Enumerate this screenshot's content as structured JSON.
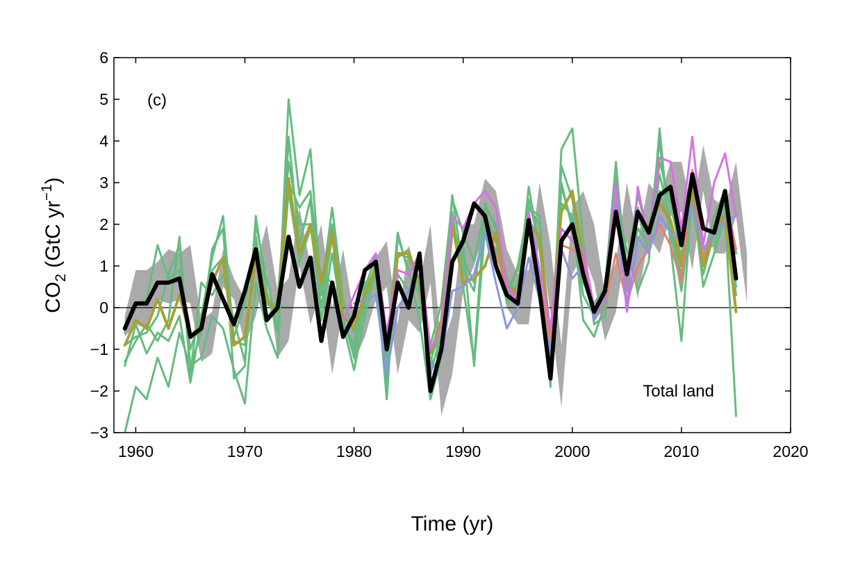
{
  "chart_data": {
    "type": "line",
    "panel_label": "(c)",
    "annotation": "Total land",
    "xlabel": "Time (yr)",
    "ylabel": {
      "base": "CO",
      "sub": "2",
      "mid": " (GtC yr",
      "sup": "−1",
      "end": ")"
    },
    "xlim": [
      1958,
      2020
    ],
    "ylim": [
      -3,
      6
    ],
    "xticks": [
      1960,
      1970,
      1980,
      1990,
      2000,
      2010,
      2020
    ],
    "yticks": [
      -3,
      -2,
      -1,
      0,
      1,
      2,
      3,
      4,
      5,
      6
    ],
    "ytick_labels": [
      "−3",
      "−2",
      "−1",
      "0",
      "1",
      "2",
      "3",
      "4",
      "5",
      "6"
    ],
    "zero_line": true,
    "grid": false,
    "band": {
      "color": "#aaaaaa",
      "x_start": 1959,
      "lower": [
        -0.7,
        -0.4,
        -0.5,
        0.2,
        0.1,
        0.2,
        0.1,
        -1.3,
        -1.1,
        0.5,
        0.2,
        -0.9,
        -0.2,
        0.9,
        -1.2,
        -0.8,
        1.0,
        -0.4,
        0.4,
        -1.6,
        0.0,
        -1.3,
        -0.7,
        0.2,
        0.5,
        -1.6,
        -0.3,
        -0.6,
        0.6,
        -2.6,
        -1.6,
        0.4,
        1.0,
        1.9,
        1.5,
        0.0,
        -0.4,
        -0.4,
        1.7,
        -0.1,
        -2.4,
        0.8,
        1.3,
        0.6,
        -0.8,
        -0.1,
        1.6,
        0.2,
        1.7,
        1.3,
        2.2,
        2.3,
        0.9,
        2.8,
        1.3,
        1.3,
        2.2,
        0.1
      ],
      "upper": [
        -0.2,
        0.9,
        0.9,
        1.1,
        1.4,
        1.3,
        1.5,
        -0.3,
        -0.1,
        1.4,
        0.7,
        0.2,
        1.0,
        2.0,
        0.4,
        0.7,
        2.4,
        1.0,
        2.0,
        0.0,
        1.4,
        -0.2,
        0.2,
        1.2,
        1.6,
        -0.4,
        1.5,
        0.6,
        2.0,
        -1.0,
        -0.2,
        2.0,
        2.0,
        3.1,
        2.8,
        1.4,
        0.8,
        0.9,
        3.0,
        1.5,
        -0.9,
        2.4,
        2.8,
        2.0,
        0.3,
        1.1,
        3.0,
        1.6,
        3.0,
        2.6,
        3.5,
        3.5,
        2.3,
        3.9,
        2.6,
        2.4,
        3.5,
        1.3
      ]
    },
    "series": [
      {
        "color": "#66bb7f",
        "width": 3,
        "x_start": 1959,
        "values": [
          -3.0,
          -1.9,
          -2.2,
          -1.2,
          -1.9,
          -0.6,
          -1.4,
          -1.2,
          -0.2,
          -0.5,
          -1.5,
          -2.3,
          0.6,
          -0.5,
          -1.2,
          4.1,
          1.5,
          2.6,
          -0.3,
          1.3,
          -0.4,
          -1.5,
          -0.2,
          0.9,
          -2.2,
          1.7,
          0.9,
          -0.3,
          -2.2,
          -1.2,
          1.8,
          1.5,
          -1.4,
          1.9,
          0.9,
          0.2,
          1.0,
          2.4,
          2.0,
          -1.9,
          3.8,
          4.3,
          1.6,
          -0.4,
          -0.2,
          2.4,
          1.4,
          0.4,
          1.1,
          4.3,
          1.5,
          -0.8,
          2.8,
          0.5,
          1.3,
          2.2,
          -2.6
        ]
      },
      {
        "color": "#66bb7f",
        "width": 3,
        "x_start": 1959,
        "values": [
          -0.9,
          -0.7,
          -0.6,
          -0.2,
          0.8,
          1.5,
          -1.4,
          -0.6,
          1.4,
          1.9,
          -1.7,
          -1.4,
          2.2,
          0.4,
          -0.6,
          5.0,
          2.7,
          3.8,
          0.3,
          2.0,
          -0.2,
          -1.2,
          0.1,
          1.0,
          -1.2,
          1.3,
          1.2,
          0.6,
          -0.9,
          0.1,
          2.6,
          1.8,
          1.1,
          2.4,
          2.0,
          0.7,
          0.3,
          2.9,
          1.4,
          -0.9,
          3.0,
          1.9,
          0.6,
          0.1,
          0.5,
          3.5,
          0.4,
          2.4,
          1.3,
          3.5,
          2.5,
          1.2,
          3.2,
          1.2,
          2.2,
          2.8,
          1.3
        ]
      },
      {
        "color": "#66bb7f",
        "width": 3,
        "x_start": 1959,
        "values": [
          -1.4,
          -0.4,
          -1.1,
          -0.6,
          -0.8,
          -0.2,
          -1.8,
          -0.3,
          0.9,
          1.2,
          -0.7,
          0.1,
          1.6,
          -0.3,
          0.2,
          3.5,
          2.0,
          2.0,
          0.0,
          1.7,
          -0.4,
          -0.9,
          0.6,
          0.8,
          -1.5,
          0.8,
          0.4,
          0.8,
          -1.6,
          -0.6,
          2.3,
          0.5,
          -1.3,
          2.5,
          1.9,
          0.1,
          0.6,
          2.1,
          1.7,
          -1.6,
          2.9,
          2.0,
          0.3,
          -0.2,
          0.2,
          2.9,
          0.7,
          1.9,
          1.5,
          2.8,
          1.9,
          0.4,
          2.5,
          0.8,
          1.8,
          2.0,
          0.9
        ]
      },
      {
        "color": "#66bb7f",
        "width": 3,
        "x_start": 1959,
        "values": [
          -0.6,
          0.1,
          0.2,
          1.5,
          0.7,
          0.9,
          -1.0,
          -0.2,
          1.2,
          2.2,
          -0.8,
          -0.9,
          1.7,
          0.1,
          -0.1,
          3.0,
          2.4,
          2.8,
          0.4,
          2.4,
          0.2,
          -0.6,
          0.5,
          1.2,
          -1.8,
          1.2,
          1.4,
          0.4,
          -1.3,
          -0.4,
          2.7,
          0.9,
          0.4,
          2.3,
          1.6,
          0.4,
          0.9,
          2.4,
          2.2,
          -1.4,
          3.4,
          2.6,
          0.9,
          0.0,
          0.3,
          3.2,
          1.0,
          2.7,
          1.7,
          4.0,
          1.7,
          0.8,
          3.1,
          1.0,
          2.0,
          2.5,
          0.5
        ]
      },
      {
        "color": "#66bb7f",
        "width": 3,
        "x_start": 1959,
        "values": [
          -1.3,
          -0.8,
          -0.4,
          -0.8,
          -0.3,
          1.7,
          -1.6,
          0.6,
          0.3,
          0.8,
          -0.3,
          -1.3,
          2.0,
          0.7,
          -0.5,
          2.8,
          1.1,
          1.9,
          0.8,
          0.6,
          -0.3,
          -1.0,
          0.4,
          1.3,
          -1.0,
          1.8,
          0.8,
          0.3,
          -1.4,
          -0.9,
          2.0,
          1.2,
          0.6,
          1.9,
          1.4,
          0.5,
          0.4,
          2.6,
          1.5,
          -1.1,
          2.5,
          2.2,
          -0.3,
          -0.7,
          0.1,
          2.8,
          0.6,
          2.3,
          1.3,
          3.2,
          2.1,
          0.6,
          2.7,
          1.4,
          1.5,
          2.4,
          0.3
        ]
      },
      {
        "color": "#a8a033",
        "width": 4,
        "x_start": 1959,
        "values": [
          -0.9,
          -0.3,
          -0.5,
          0.2,
          -0.5,
          0.3,
          -0.7,
          -0.4,
          0.6,
          1.2,
          -0.9,
          -0.7,
          1.2,
          0.2,
          -0.1,
          3.1,
          1.3,
          2.0,
          0.6,
          1.8,
          -0.2,
          -0.5,
          0.3,
          1.0,
          -0.9,
          1.3,
          1.3,
          0.6,
          -1.1,
          -0.3,
          2.0,
          0.6,
          0.7,
          1.0,
          1.8,
          0.5,
          0.4,
          2.0,
          1.7,
          -0.7,
          2.3,
          2.8,
          1.2,
          -0.1,
          0.1,
          2.5,
          0.8,
          2.3,
          1.9,
          2.5,
          2.1,
          1.0,
          2.9,
          1.0,
          1.9,
          2.2,
          -0.1
        ]
      },
      {
        "color": "#e77f70",
        "width": 3,
        "x_start": 1992,
        "values": [
          2.3,
          1.3,
          0.5,
          0.3,
          2.0,
          0.6,
          -0.8,
          1.5,
          1.4,
          1.2,
          -0.3,
          0.1,
          1.3,
          0.1,
          1.0,
          1.4,
          2.0,
          1.5,
          0.6,
          3.3,
          1.2,
          1.9,
          2.7,
          1.4
        ]
      },
      {
        "color": "#8a95e6",
        "width": 3,
        "x_start": 1980,
        "values": [
          0.1,
          0.2,
          0.3,
          -1.6,
          0.0,
          0.4,
          1.0,
          -1.5,
          -1.2,
          0.4,
          0.5,
          0.8,
          1.8,
          0.6,
          -0.5,
          0.0,
          1.2,
          0.2,
          -1.1,
          1.4,
          0.7,
          1.0,
          -0.3,
          0.2,
          2.5,
          -0.1,
          1.7,
          1.3,
          2.2,
          1.8,
          1.6,
          2.5,
          1.4,
          1.8,
          2.1,
          2.2
        ]
      },
      {
        "color": "#d870e6",
        "width": 3,
        "x_start": 1979,
        "values": [
          -0.3,
          0.3,
          0.9,
          1.3,
          -0.6,
          0.9,
          0.8,
          1.3,
          -1.0,
          -0.5,
          2.2,
          1.9,
          2.5,
          2.8,
          2.4,
          0.5,
          0.2,
          2.3,
          0.9,
          -0.5,
          1.9,
          1.6,
          1.4,
          0.0,
          0.4,
          3.0,
          0.0,
          2.9,
          1.6,
          3.6,
          3.5,
          1.9,
          4.1,
          1.5,
          3.0,
          3.7,
          2.2
        ]
      },
      {
        "color": "#000000",
        "width": 6,
        "x_start": 1959,
        "values": [
          -0.5,
          0.1,
          0.1,
          0.6,
          0.6,
          0.7,
          -0.7,
          -0.5,
          0.8,
          0.2,
          -0.4,
          0.4,
          1.4,
          -0.3,
          0.0,
          1.7,
          0.5,
          1.2,
          -0.8,
          0.6,
          -0.7,
          -0.2,
          0.9,
          1.1,
          -1.0,
          0.6,
          0.0,
          1.3,
          -2.0,
          -1.0,
          1.1,
          1.6,
          2.5,
          2.2,
          1.0,
          0.3,
          0.1,
          2.1,
          0.4,
          -1.7,
          1.6,
          2.0,
          0.8,
          -0.1,
          0.4,
          2.3,
          0.8,
          2.3,
          1.8,
          2.7,
          2.9,
          1.5,
          3.2,
          1.9,
          1.8,
          2.8,
          0.7
        ]
      }
    ]
  }
}
